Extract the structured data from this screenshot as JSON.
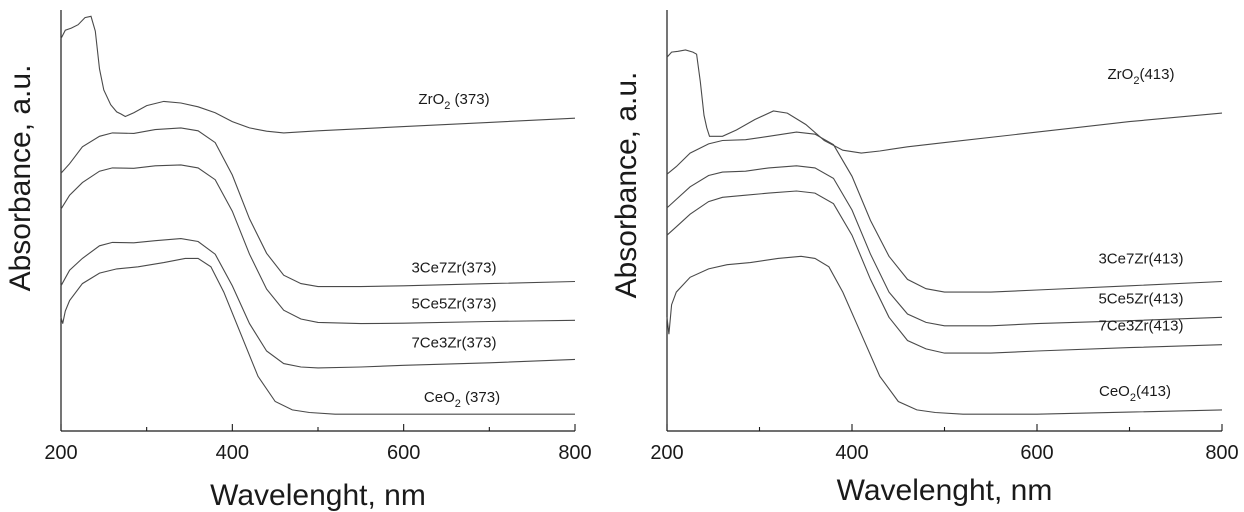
{
  "chart_data": [
    {
      "type": "line",
      "xlabel": "Wavelenght, nm",
      "ylabel": "Absorbance, a.u.",
      "xlim": [
        200,
        800
      ],
      "ylim": [
        0,
        1
      ],
      "xticks": [
        "200",
        "400",
        "600",
        "800"
      ],
      "y_tick_labels": false,
      "series": [
        {
          "name": "ZrO2 (373)",
          "label_main": "ZrO",
          "label_sub": "2",
          "label_rest": " (373)",
          "x": [
            200,
            205,
            212,
            220,
            228,
            235,
            240,
            245,
            250,
            258,
            265,
            270,
            275,
            285,
            300,
            320,
            340,
            360,
            380,
            400,
            420,
            440,
            460,
            500,
            600,
            700,
            800
          ],
          "y": [
            0.932,
            0.952,
            0.957,
            0.965,
            0.982,
            0.985,
            0.95,
            0.86,
            0.81,
            0.775,
            0.758,
            0.753,
            0.747,
            0.756,
            0.773,
            0.783,
            0.779,
            0.77,
            0.756,
            0.735,
            0.72,
            0.712,
            0.708,
            0.713,
            0.723,
            0.733,
            0.743
          ]
        },
        {
          "name": "3Ce7Zr(373)",
          "label_main": "3Ce7Zr(373)",
          "label_sub": "",
          "label_rest": "",
          "x": [
            200,
            210,
            225,
            245,
            260,
            285,
            310,
            340,
            360,
            380,
            400,
            420,
            440,
            460,
            480,
            500,
            550,
            600,
            700,
            800
          ],
          "y": [
            0.612,
            0.635,
            0.675,
            0.7,
            0.708,
            0.707,
            0.716,
            0.72,
            0.713,
            0.685,
            0.608,
            0.504,
            0.422,
            0.37,
            0.35,
            0.343,
            0.343,
            0.345,
            0.35,
            0.355
          ]
        },
        {
          "name": "5Ce5Zr(373)",
          "label_main": "5Ce5Zr(373)",
          "label_sub": "",
          "label_rest": "",
          "x": [
            200,
            210,
            225,
            245,
            260,
            285,
            310,
            340,
            360,
            380,
            400,
            420,
            440,
            460,
            480,
            500,
            550,
            600,
            700,
            800
          ],
          "y": [
            0.527,
            0.56,
            0.59,
            0.617,
            0.625,
            0.624,
            0.63,
            0.632,
            0.625,
            0.597,
            0.522,
            0.42,
            0.337,
            0.287,
            0.266,
            0.258,
            0.255,
            0.256,
            0.26,
            0.263
          ]
        },
        {
          "name": "7Ce3Zr(373)",
          "label_main": "7Ce3Zr(373)",
          "label_sub": "",
          "label_rest": "",
          "x": [
            200,
            210,
            225,
            245,
            260,
            285,
            310,
            340,
            360,
            380,
            400,
            420,
            440,
            460,
            480,
            500,
            550,
            600,
            700,
            800
          ],
          "y": [
            0.345,
            0.382,
            0.41,
            0.44,
            0.448,
            0.447,
            0.452,
            0.457,
            0.45,
            0.42,
            0.345,
            0.255,
            0.19,
            0.16,
            0.152,
            0.15,
            0.152,
            0.156,
            0.162,
            0.17
          ]
        },
        {
          "name": "CeO2 (373)",
          "label_main": "CeO",
          "label_sub": "2",
          "label_rest": " (373)",
          "x": [
            200,
            202,
            205,
            210,
            225,
            245,
            265,
            290,
            320,
            345,
            360,
            375,
            390,
            410,
            430,
            450,
            470,
            490,
            520,
            600,
            700,
            800
          ],
          "y": [
            0.27,
            0.255,
            0.285,
            0.31,
            0.35,
            0.375,
            0.385,
            0.39,
            0.4,
            0.41,
            0.41,
            0.39,
            0.33,
            0.23,
            0.13,
            0.07,
            0.05,
            0.044,
            0.04,
            0.04,
            0.04,
            0.04
          ]
        }
      ]
    },
    {
      "type": "line",
      "xlabel": "Wavelenght, nm",
      "ylabel": "Absorbance, a.u.",
      "xlim": [
        200,
        800
      ],
      "ylim": [
        0,
        1
      ],
      "xticks": [
        "200",
        "400",
        "600",
        "800"
      ],
      "y_tick_labels": false,
      "series": [
        {
          "name": "ZrO2(413)",
          "label_main": "ZrO",
          "label_sub": "2",
          "label_rest": "(413)",
          "x": [
            200,
            205,
            212,
            220,
            228,
            232,
            236,
            240,
            243,
            246,
            250,
            260,
            275,
            295,
            315,
            330,
            350,
            370,
            390,
            410,
            430,
            460,
            500,
            600,
            700,
            800
          ],
          "y": [
            0.888,
            0.9,
            0.902,
            0.905,
            0.9,
            0.895,
            0.83,
            0.75,
            0.72,
            0.7,
            0.7,
            0.7,
            0.715,
            0.74,
            0.76,
            0.755,
            0.728,
            0.69,
            0.667,
            0.66,
            0.665,
            0.675,
            0.685,
            0.71,
            0.735,
            0.755
          ]
        },
        {
          "name": "3Ce7Zr(413)",
          "label_main": "3Ce7Zr(413)",
          "label_sub": "",
          "label_rest": "",
          "x": [
            200,
            210,
            225,
            245,
            260,
            285,
            310,
            340,
            360,
            380,
            400,
            420,
            440,
            460,
            480,
            500,
            550,
            600,
            700,
            800
          ],
          "y": [
            0.61,
            0.628,
            0.66,
            0.682,
            0.69,
            0.692,
            0.7,
            0.71,
            0.705,
            0.68,
            0.605,
            0.5,
            0.415,
            0.36,
            0.338,
            0.33,
            0.33,
            0.335,
            0.345,
            0.355
          ]
        },
        {
          "name": "5Ce5Zr(413)",
          "label_main": "5Ce5Zr(413)",
          "label_sub": "",
          "label_rest": "",
          "x": [
            200,
            210,
            225,
            245,
            260,
            285,
            310,
            340,
            360,
            380,
            400,
            420,
            440,
            460,
            480,
            500,
            550,
            600,
            700,
            800
          ],
          "y": [
            0.53,
            0.55,
            0.58,
            0.607,
            0.615,
            0.617,
            0.625,
            0.63,
            0.625,
            0.6,
            0.525,
            0.42,
            0.33,
            0.278,
            0.258,
            0.25,
            0.25,
            0.255,
            0.262,
            0.27
          ]
        },
        {
          "name": "7Ce3Zr(413)",
          "label_main": "7Ce3Zr(413)",
          "label_sub": "",
          "label_rest": "",
          "x": [
            200,
            210,
            225,
            245,
            260,
            285,
            310,
            340,
            360,
            380,
            400,
            420,
            440,
            460,
            480,
            500,
            550,
            600,
            700,
            800
          ],
          "y": [
            0.465,
            0.485,
            0.515,
            0.545,
            0.555,
            0.56,
            0.565,
            0.57,
            0.565,
            0.54,
            0.465,
            0.36,
            0.27,
            0.215,
            0.195,
            0.185,
            0.185,
            0.19,
            0.198,
            0.205
          ]
        },
        {
          "name": "CeO2(413)",
          "label_main": "CeO",
          "label_sub": "2",
          "label_rest": "(413)",
          "x": [
            200,
            202,
            205,
            210,
            225,
            245,
            265,
            290,
            320,
            345,
            360,
            375,
            390,
            410,
            430,
            450,
            470,
            490,
            520,
            600,
            700,
            800
          ],
          "y": [
            0.27,
            0.23,
            0.3,
            0.33,
            0.365,
            0.385,
            0.395,
            0.4,
            0.41,
            0.415,
            0.41,
            0.39,
            0.33,
            0.23,
            0.13,
            0.07,
            0.05,
            0.044,
            0.04,
            0.04,
            0.045,
            0.05
          ]
        }
      ]
    }
  ]
}
